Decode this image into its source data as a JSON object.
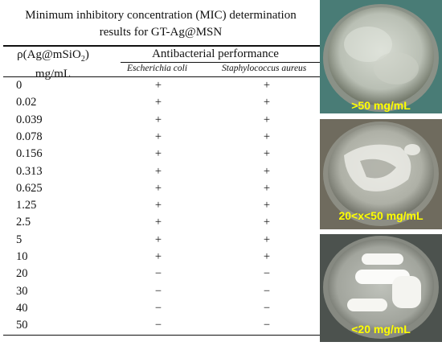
{
  "table": {
    "title_line1": "Minimum inhibitory concentration (MIC) determination",
    "title_line2": "results for GT-Ag@MSN",
    "col1_header_line1": "ρ(Ag@mSiO",
    "col1_header_sub": "2",
    "col1_header_line1_end": ")",
    "col1_header_line2": "mg/mL",
    "group_header": "Antibacterial performance",
    "col2_header": "Escherichia coli",
    "col3_header": "Staphylococcus aureus",
    "rows": [
      {
        "conc": "0",
        "ecoli": "+",
        "saureus": "+"
      },
      {
        "conc": "0.02",
        "ecoli": "+",
        "saureus": "+"
      },
      {
        "conc": "0.039",
        "ecoli": "+",
        "saureus": "+"
      },
      {
        "conc": "0.078",
        "ecoli": "+",
        "saureus": "+"
      },
      {
        "conc": "0.156",
        "ecoli": "+",
        "saureus": "+"
      },
      {
        "conc": "0.313",
        "ecoli": "+",
        "saureus": "+"
      },
      {
        "conc": "0.625",
        "ecoli": "+",
        "saureus": "+"
      },
      {
        "conc": "1.25",
        "ecoli": "+",
        "saureus": "+"
      },
      {
        "conc": "2.5",
        "ecoli": "+",
        "saureus": "+"
      },
      {
        "conc": "5",
        "ecoli": "+",
        "saureus": "+"
      },
      {
        "conc": "10",
        "ecoli": "+",
        "saureus": "+"
      },
      {
        "conc": "20",
        "ecoli": "−",
        "saureus": "−"
      },
      {
        "conc": "30",
        "ecoli": "−",
        "saureus": "−"
      },
      {
        "conc": "40",
        "ecoli": "−",
        "saureus": "−"
      },
      {
        "conc": "50",
        "ecoli": "−",
        "saureus": "−"
      }
    ]
  },
  "photos": [
    {
      "label": ">50 mg/mL"
    },
    {
      "label": "20<x<50 mg/mL"
    },
    {
      "label": "<20 mg/mL"
    }
  ],
  "colors": {
    "label": "#ffff00"
  }
}
